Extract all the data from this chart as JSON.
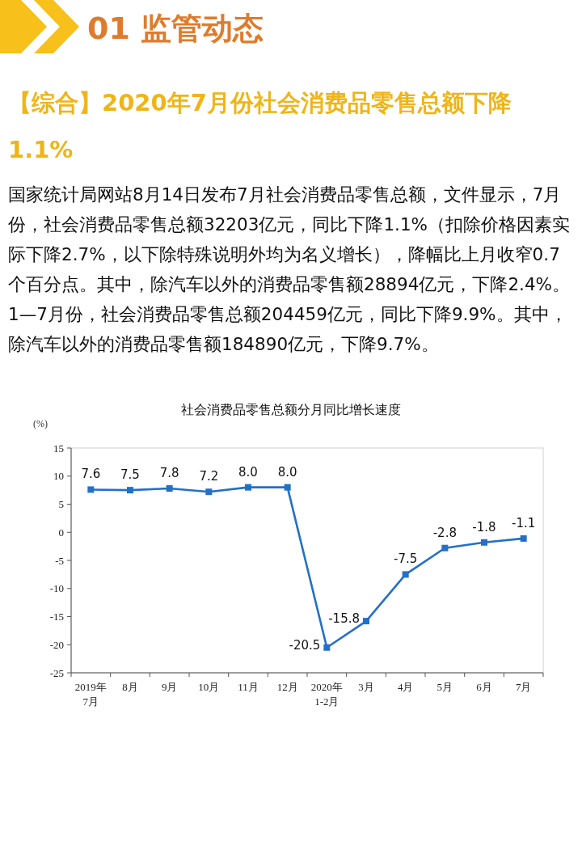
{
  "chart_data": {
    "type": "line",
    "title": "社会消费品零售总额分月同比增长速度",
    "ylabel": "(%)",
    "annotations": [
      "01 监管动态",
      "【综合】2020年7月份社会消费品零售总额下降1.1%",
      "国家统计局网站8月14日发布7月社会消费品零售总额，文件显示，7月份，社会消费品零售总额32203亿元，同比下降1.1%（扣除价格因素实际下降2.7%，以下除特殊说明外均为名义增长），降幅比上月收窄0.7个百分点。其中，除汽车以外的消费品零售额28894亿元，下降2.4%。1—7月份，社会消费品零售总额204459亿元，同比下降9.9%。其中，除汽车以外的消费品零售额184890亿元，下降9.7%。"
    ],
    "categories": [
      "2019年\n7月",
      "8月",
      "9月",
      "10月",
      "11月",
      "12月",
      "2020年\n1-2月",
      "3月",
      "4月",
      "5月",
      "6月",
      "7月"
    ],
    "series": [
      {
        "color": "#2370c8",
        "values": [
          7.6,
          7.5,
          7.8,
          7.2,
          8.0,
          8.0,
          -20.5,
          -15.8,
          -7.5,
          -2.8,
          -1.8,
          -1.1
        ],
        "value_labels": [
          "7.6",
          "7.5",
          "7.8",
          "7.2",
          "8.0",
          "8.0",
          "-20.5",
          "-15.8",
          "-7.5",
          "-2.8",
          "-1.8",
          "-1.1"
        ]
      }
    ],
    "ylim": [
      -25,
      15
    ],
    "yticks": [
      -25,
      -20,
      -15,
      -10,
      -5,
      0,
      5,
      10,
      15
    ],
    "grid": false,
    "marker": "square",
    "line_style": "solid"
  }
}
